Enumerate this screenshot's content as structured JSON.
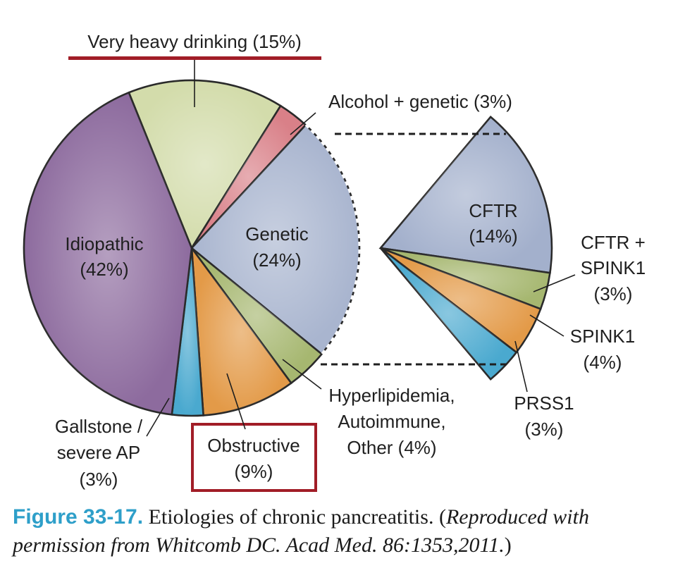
{
  "chart_data": [
    {
      "type": "pie",
      "slices": [
        {
          "label": "Very heavy drinking",
          "value": 15,
          "value_label": "(15%)",
          "color": "#d3dcab"
        },
        {
          "label": "Alcohol + genetic",
          "value": 3,
          "value_label": "(3%)",
          "color": "#d98088"
        },
        {
          "label": "Genetic",
          "value": 24,
          "value_label": "(24%)",
          "color": "#a9b5cf"
        },
        {
          "label": "Hyperlipidemia, Autoimmune, Other",
          "value": 4,
          "value_label": "(4%)",
          "color": "#a6b770"
        },
        {
          "label": "Obstructive",
          "value": 9,
          "value_label": "(9%)",
          "color": "#e39a48"
        },
        {
          "label": "Gallstone / severe AP",
          "value": 3,
          "value_label": "(3%)",
          "color": "#4aa9cf"
        },
        {
          "label": "Idiopathic",
          "value": 42,
          "value_label": "(42%)",
          "color": "#8d6b9e"
        }
      ]
    },
    {
      "type": "pie",
      "slices": [
        {
          "label": "CFTR",
          "value": 14,
          "value_label": "(14%)",
          "color": "#a3b0cc"
        },
        {
          "label": "CFTR + SPINK1",
          "value": 3,
          "value_label": "(3%)",
          "color": "#a6b770"
        },
        {
          "label": "SPINK1",
          "value": 4,
          "value_label": "(4%)",
          "color": "#e39a48"
        },
        {
          "label": "PRSS1",
          "value": 3,
          "value_label": "(3%)",
          "color": "#4aa9cf"
        }
      ]
    }
  ],
  "labels": {
    "heavy_drinking": "Very heavy drinking (15%)",
    "alcohol_genetic": "Alcohol + genetic (3%)",
    "genetic": "Genetic",
    "genetic_pct": "(24%)",
    "idiopathic": "Idiopathic",
    "idiopathic_pct": "(42%)",
    "hyperlipidemia_1": "Hyperlipidemia,",
    "hyperlipidemia_2": "Autoimmune,",
    "hyperlipidemia_3": "Other (4%)",
    "gallstone_1": "Gallstone /",
    "gallstone_2": "severe AP",
    "gallstone_3": "(3%)",
    "obstructive": "Obstructive",
    "obstructive_pct": "(9%)",
    "cftr": "CFTR",
    "cftr_pct": "(14%)",
    "cftr_spink1_1": "CFTR +",
    "cftr_spink1_2": "SPINK1",
    "cftr_spink1_3": "(3%)",
    "spink1": "SPINK1",
    "spink1_pct": "(4%)",
    "prss1": "PRSS1",
    "prss1_pct": "(3%)"
  },
  "caption": {
    "figure_label": "Figure 33-17.",
    "text": " Etiologies of chronic pancreatitis. (",
    "italic": "Reproduced with permission from Whitcomb DC. Acad Med. 86:1353,2011.",
    "end": ")"
  },
  "colors": {
    "highlight": "#a11d27",
    "caption_label": "#2e9fc9"
  }
}
